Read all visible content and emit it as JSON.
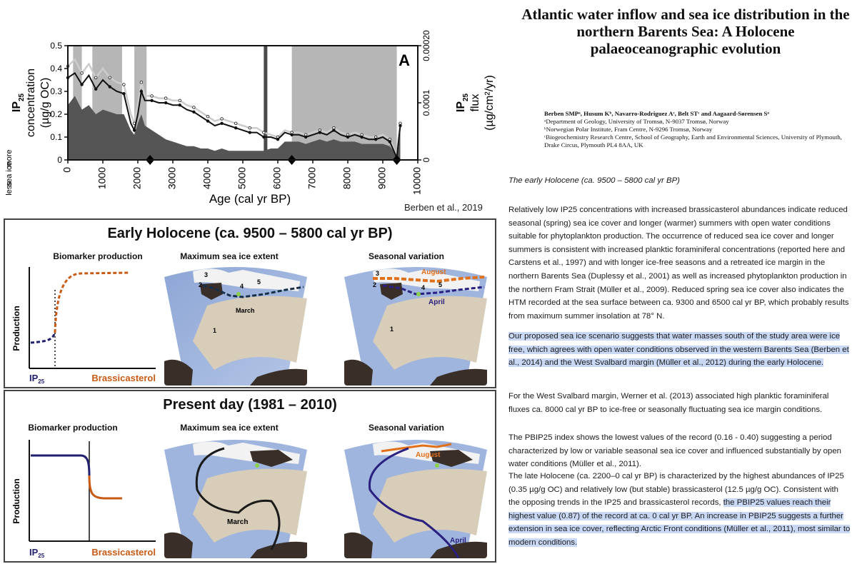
{
  "chart": {
    "panel_label": "A",
    "y_left_label": "IP25 concentration (µg/g OC)",
    "y_left_label_l1": "IP",
    "y_left_label_l1_sub": "25",
    "y_left_label_l2": "concentration",
    "y_left_label_l3": "(µg/g OC)",
    "y_right_label_l1": "IP",
    "y_right_label_l1_sub": "25",
    "y_right_label_l2": "flux",
    "y_right_label_l3": "(µg/cm²/yr)",
    "x_label": "Age (cal yr BP)",
    "sea_ice_more": "more",
    "sea_ice_label": "sea ice",
    "sea_ice_less": "less",
    "credit": "Berben et al., 2019"
  },
  "chart_data": {
    "type": "area",
    "x_ticks": [
      0,
      1000,
      2000,
      3000,
      4000,
      5000,
      6000,
      7000,
      8000,
      9000,
      10000
    ],
    "y_left_ticks": [
      "0",
      "0.1",
      "0.2",
      "0.3",
      "0.4",
      "0.5"
    ],
    "y_right_ticks": [
      "0",
      "0.0001",
      "0.00020"
    ],
    "xlim": [
      0,
      10000
    ],
    "ylim_left": [
      0,
      0.5
    ],
    "ylim_right": [
      0,
      0.0002
    ],
    "age": [
      0,
      200,
      400,
      600,
      800,
      1000,
      1200,
      1400,
      1600,
      1800,
      1900,
      2000,
      2100,
      2200,
      2400,
      2600,
      2800,
      3000,
      3200,
      3400,
      3600,
      3800,
      4000,
      4200,
      4400,
      4600,
      4800,
      5000,
      5200,
      5400,
      5600,
      5800,
      6000,
      6200,
      6400,
      6600,
      6800,
      7000,
      7200,
      7400,
      7600,
      7800,
      8000,
      8200,
      8400,
      8600,
      8800,
      9000,
      9200,
      9400,
      9500
    ],
    "series": [
      {
        "name": "IP25 flux (upper)",
        "values": [
          0.41,
          0.44,
          0.38,
          0.42,
          0.36,
          0.4,
          0.36,
          0.34,
          0.33,
          0.2,
          0.16,
          0.24,
          0.34,
          0.28,
          0.28,
          0.27,
          0.27,
          0.26,
          0.26,
          0.24,
          0.23,
          0.21,
          0.19,
          0.17,
          0.18,
          0.17,
          0.16,
          0.15,
          0.14,
          0.14,
          0.12,
          0.11,
          0.1,
          0.13,
          0.12,
          0.12,
          0.11,
          0.12,
          0.13,
          0.12,
          0.14,
          0.12,
          0.11,
          0.12,
          0.11,
          0.1,
          0.1,
          0.11,
          0.09,
          0.02,
          0.16
        ]
      },
      {
        "name": "IP25 flux (lower)",
        "values": [
          0.36,
          0.38,
          0.33,
          0.37,
          0.31,
          0.35,
          0.32,
          0.3,
          0.29,
          0.16,
          0.13,
          0.2,
          0.3,
          0.26,
          0.26,
          0.25,
          0.25,
          0.24,
          0.24,
          0.22,
          0.21,
          0.19,
          0.17,
          0.15,
          0.16,
          0.15,
          0.14,
          0.13,
          0.12,
          0.12,
          0.1,
          0.1,
          0.09,
          0.12,
          0.11,
          0.11,
          0.1,
          0.11,
          0.12,
          0.11,
          0.13,
          0.11,
          0.1,
          0.11,
          0.1,
          0.09,
          0.09,
          0.1,
          0.08,
          0.01,
          0.15
        ]
      },
      {
        "name": "IP25 concentration (area)",
        "values": [
          0.24,
          0.28,
          0.22,
          0.24,
          0.2,
          0.22,
          0.21,
          0.2,
          0.2,
          0.13,
          0.11,
          0.16,
          0.2,
          0.15,
          0.13,
          0.11,
          0.09,
          0.08,
          0.07,
          0.06,
          0.06,
          0.05,
          0.05,
          0.04,
          0.05,
          0.04,
          0.04,
          0.04,
          0.04,
          0.04,
          0.04,
          0.05,
          0.05,
          0.08,
          0.08,
          0.08,
          0.07,
          0.08,
          0.09,
          0.08,
          0.09,
          0.08,
          0.08,
          0.08,
          0.07,
          0.07,
          0.07,
          0.07,
          0.06,
          0.02,
          0.13
        ]
      }
    ],
    "shaded_intervals": [
      [
        150,
        400
      ],
      [
        700,
        1550
      ],
      [
        1900,
        2250
      ],
      [
        6400,
        9400
      ]
    ],
    "dark_bars": [
      5650
    ],
    "diamond_markers": [
      2350,
      6400,
      9400
    ]
  },
  "early": {
    "title": "Early Holocene (ca. 9500 – 5800 cal yr BP)",
    "biomarker_title": "Biomarker production",
    "max_extent_title": "Maximum sea ice extent",
    "seasonal_title": "Seasonal variation",
    "y_axis": "Production",
    "x_left": "IP",
    "x_left_sub": "25",
    "x_right": "Brassicasterol",
    "map_labels": {
      "n1": "1",
      "n2": "2",
      "n3": "3",
      "n4": "4",
      "n5": "5",
      "march": "March",
      "august": "August",
      "april": "April"
    }
  },
  "present": {
    "title": "Present day (1981 – 2010)",
    "biomarker_title": "Biomarker production",
    "max_extent_title": "Maximum sea ice extent",
    "seasonal_title": "Seasonal variation",
    "y_axis": "Production",
    "x_left": "IP",
    "x_left_sub": "25",
    "x_right": "Brassicasterol",
    "map_labels": {
      "march": "March",
      "august": "August",
      "april": "April"
    }
  },
  "colors": {
    "ip25": "#1f1f6e",
    "brassicasterol": "#c85a14",
    "march_line": "#1a1a1a",
    "august_line": "#e0701a",
    "april_line": "#2a2080",
    "highlight": "#c9d9f5"
  },
  "paper": {
    "title": "Atlantic water inflow and sea ice distribution in the northern Barents Sea: A Holocene palaeoceanographic evolution",
    "authors": "Berben SMPᵃ, Husum Kᵇ, Navarro-Rodriguez Aᶜ, Belt STᶜ and Aagaard-Sørensen Sᵃ",
    "aff_a": "ᵃDepartment of Geology, University of Tromsø, N-9037 Tromsø, Norway",
    "aff_b": "ᵇNorwegian Polar Institute, Fram Centre, N-9296 Tromsø, Norway",
    "aff_c": "ᶜBiogeochemistry Research Centre, School of Geography, Earth and Environmental Sciences, University of Plymouth, Drake Circus, Plymouth PL4 8AA, UK",
    "section_heading": "The early Holocene (ca. 9500 – 5800 cal yr BP)",
    "p1": "Relatively low IP25 concentrations with increased brassicasterol abundances indicate reduced seasonal (spring) sea ice cover and longer (warmer) summers with open water conditions suitable for phytoplankton production. The occurrence of reduced  sea ice cover and longer summers is consistent with increased planktic foraminiferal concentrations (reported here and Carstens et al., 1997) and with longer ice-free seasons and a retreated ice margin in the northern Barents Sea (Duplessy et al., 2001) as well as increased phytoplankton production in  the northern Fram Strait (Müller et al., 2009). Reduced spring sea ice cover also indicates the HTM  recorded at the sea surface between ca. 9300 and 6500 cal yr BP, which probably results from maximum summer insolation at 78° N.",
    "p2": "Our proposed sea ice scenario suggests that water masses south of the study area were ice free, which agrees with open water conditions observed in the western Barents Sea (Berben et al., 2014) and the West Svalbard margin (Müller et al., 2012) during the early Holocene.",
    "p3": "For the West Svalbard margin, Werner et al. (2013) associated high planktic foraminiferal fluxes ca. 8000 cal yr BP to ice-free or seasonally fluctuating sea ice margin conditions.",
    "p4": "The PBIP25 index shows the lowest values of the record (0.16 - 0.40) suggesting a period characterized by low or variable seasonal sea ice cover and influenced substantially by open water conditions (Müller et al., 2011).",
    "p5a": "The late Holocene (ca. 2200–0 cal yr BP) is characterized by the highest abundances of IP25 (0.35 µg/g OC) and relatively low (but stable) brassicasterol (12.5 µg/g OC). Consistent with the opposing trends in the IP25 and brassicasterol records, ",
    "p5b": "the PBIP25 values reach their highest value (0.87) of the record at  ca. 0 cal yr BP. An increase in PBIP25 suggests a further extension in sea ice cover, reflecting Arctic Front conditions (Müller et al., 2011), most similar to modern conditions."
  }
}
